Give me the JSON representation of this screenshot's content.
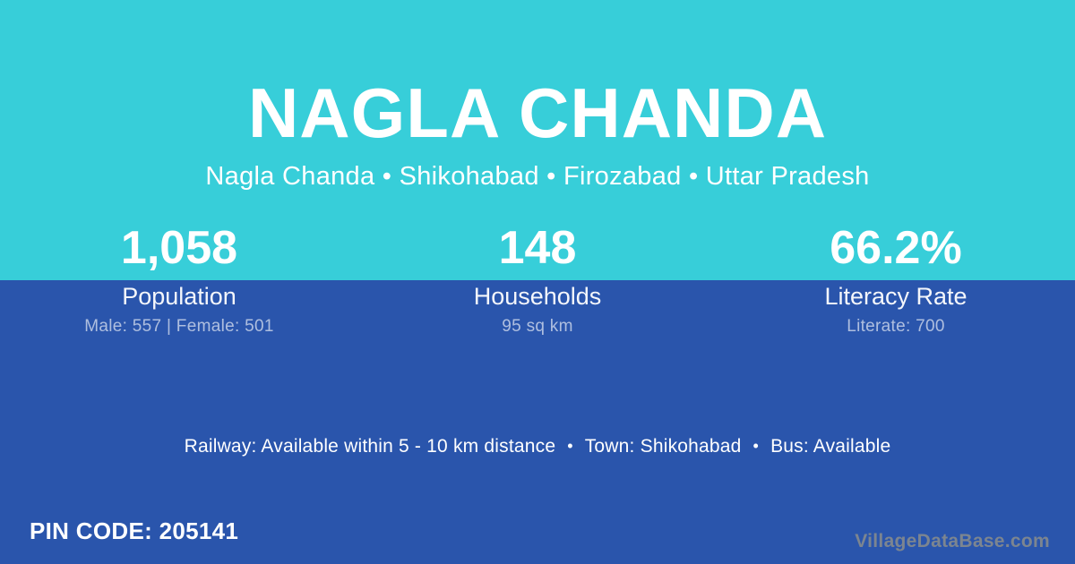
{
  "theme": {
    "cyan_background": "#37ced9",
    "blue_background": "#2a55ac",
    "text_primary": "#ffffff",
    "text_muted": "rgba(255,255,255,0.62)",
    "watermark_color": "#7c8590"
  },
  "header": {
    "title": "NAGLA CHANDA",
    "breadcrumb": "Nagla Chanda • Shikohabad • Firozabad • Uttar Pradesh"
  },
  "stats": [
    {
      "value": "1,058",
      "label": "Population",
      "detail": "Male: 557 | Female: 501"
    },
    {
      "value": "148",
      "label": "Households",
      "detail": "95 sq km"
    },
    {
      "value": "66.2%",
      "label": "Literacy Rate",
      "detail": "Literate: 700"
    }
  ],
  "amenities": {
    "separator": "•",
    "items": [
      {
        "text": "Railway: Available within 5 - 10 km distance"
      },
      {
        "text": "Town: Shikohabad"
      },
      {
        "text": "Bus: Available"
      }
    ]
  },
  "footer": {
    "pin_label": "PIN CODE:",
    "pin_value": "205141",
    "watermark": "VillageDataBase.com"
  }
}
